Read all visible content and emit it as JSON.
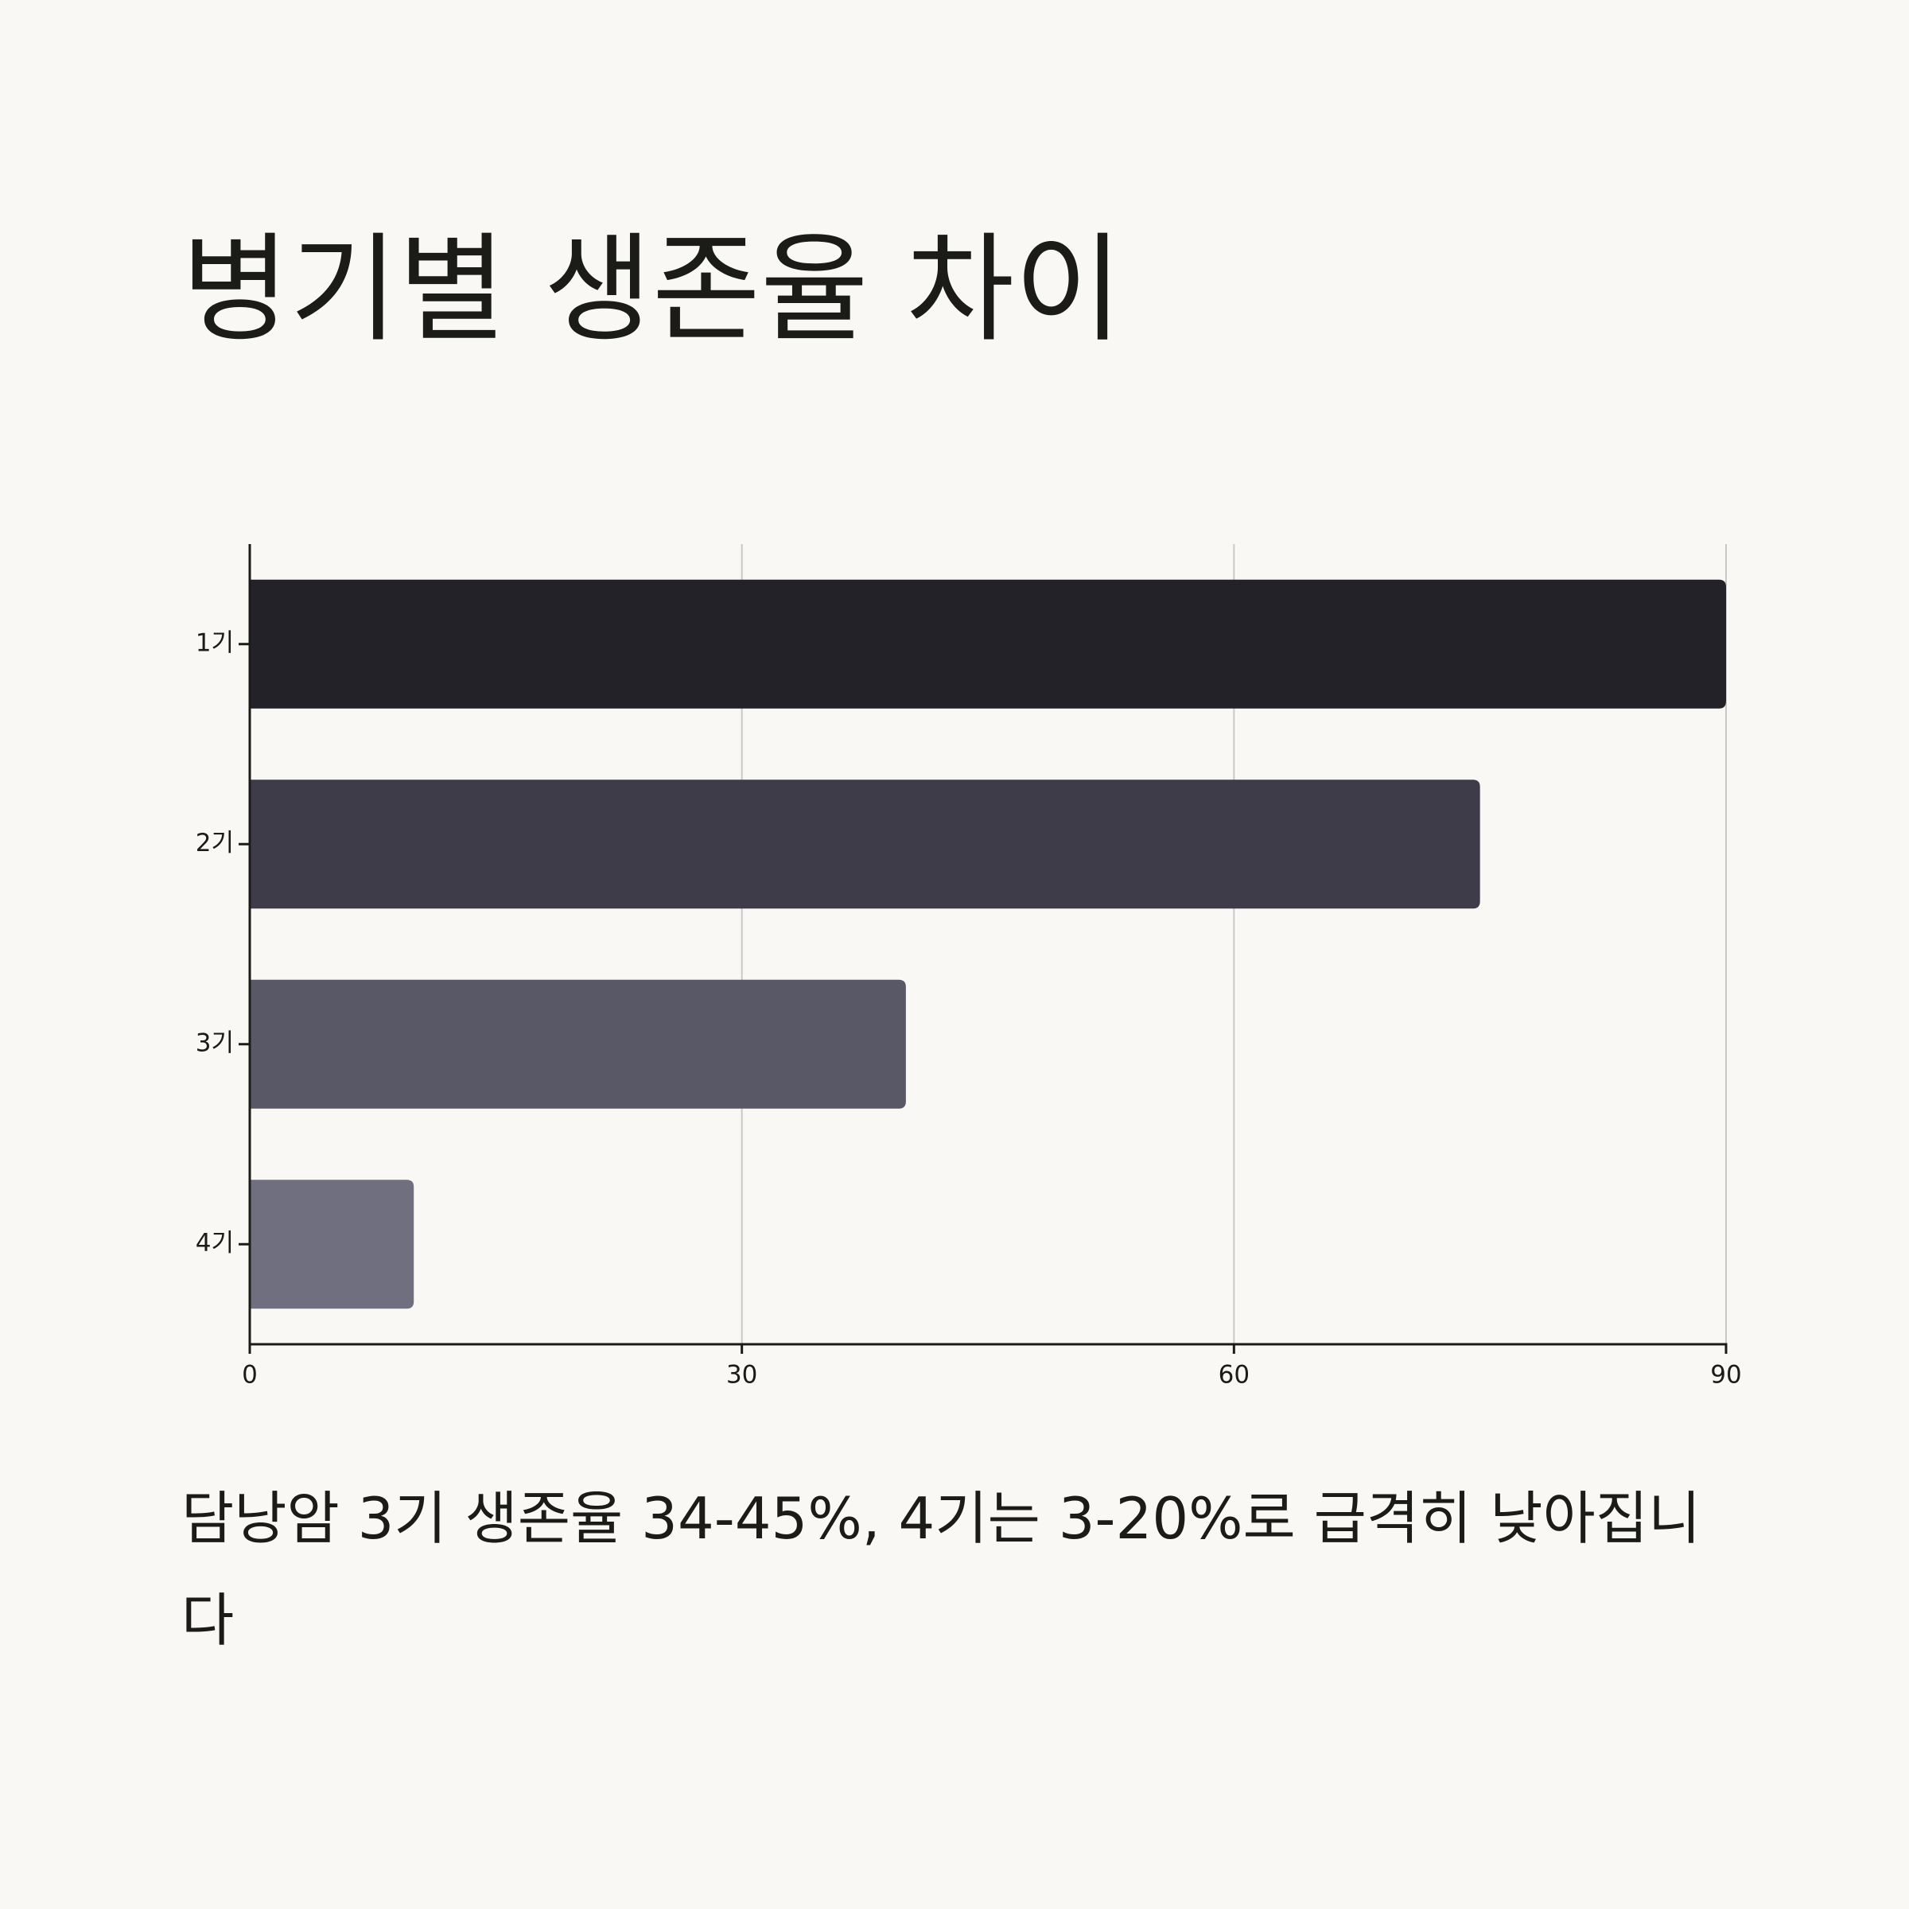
{
  "chart_data": {
    "type": "bar",
    "orientation": "horizontal",
    "title": "병기별 생존율 차이",
    "categories": [
      "1기",
      "2기",
      "3기",
      "4기"
    ],
    "values": [
      90,
      75,
      40,
      10
    ],
    "colors": [
      "#232228",
      "#3d3c48",
      "#595866",
      "#6f6f80"
    ],
    "xlim": [
      0,
      90
    ],
    "xticks": [
      0,
      30,
      60,
      90
    ],
    "grid": true,
    "caption": "담낭암 3기 생존율 34-45%, 4기는 3-20%로 급격히 낮아집니다"
  }
}
